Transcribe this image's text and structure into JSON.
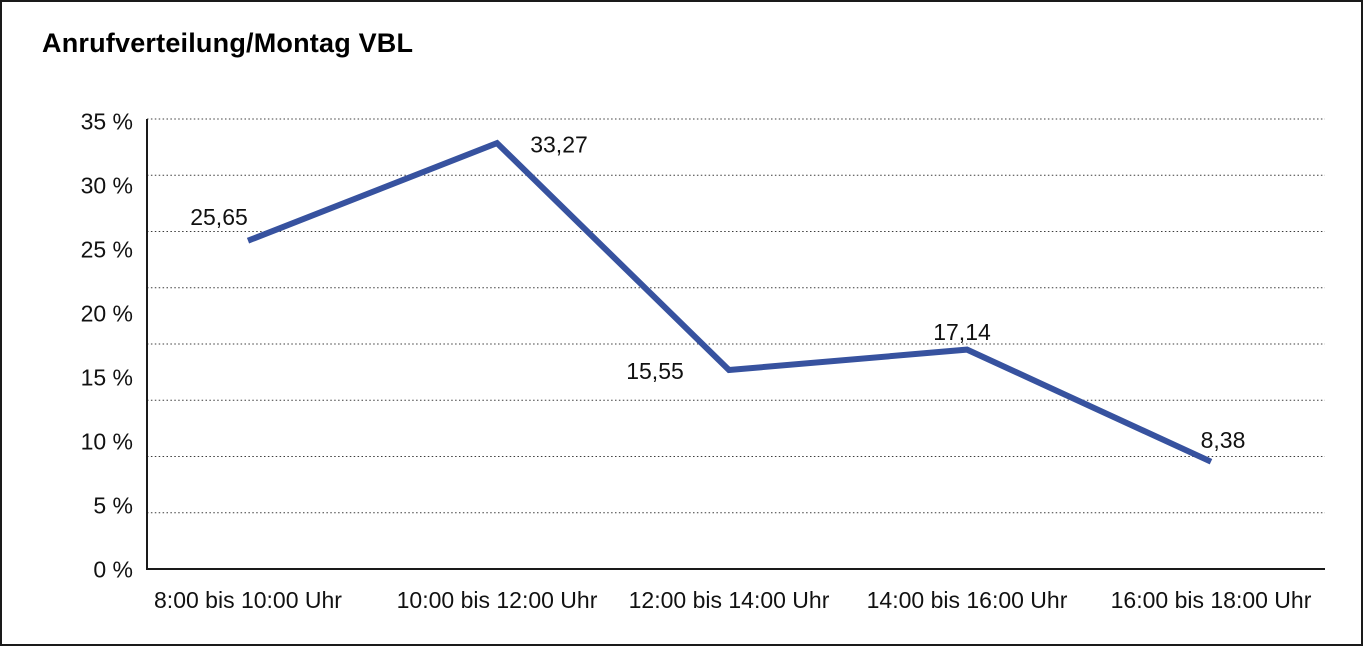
{
  "title": "Anrufverteilung/Montag VBL",
  "chart_data": {
    "type": "line",
    "title": "Anrufverteilung/Montag VBL",
    "categories": [
      "8:00 bis 10:00 Uhr",
      "10:00 bis 12:00 Uhr",
      "12:00 bis 14:00 Uhr",
      "14:00 bis 16:00 Uhr",
      "16:00 bis 18:00 Uhr"
    ],
    "values": [
      25.65,
      33.27,
      15.55,
      17.14,
      8.38
    ],
    "value_labels": [
      "25,65",
      "33,27",
      "15,55",
      "17,14",
      "8,38"
    ],
    "y_tick_labels": [
      "35 %",
      "30 %",
      "25 %",
      "20 %",
      "15 %",
      "10 %",
      "5 %",
      "0 %"
    ],
    "ylim": [
      0,
      35
    ],
    "y_unit": "%",
    "xlabel": "",
    "ylabel": "",
    "grid": "horizontal-dotted",
    "legend": "none",
    "line_color": "#37529F",
    "axis_color": "#1a1a1a",
    "gridline_color": "#3c3c3c",
    "text_color": "#111111",
    "background_color": "#ffffff"
  }
}
